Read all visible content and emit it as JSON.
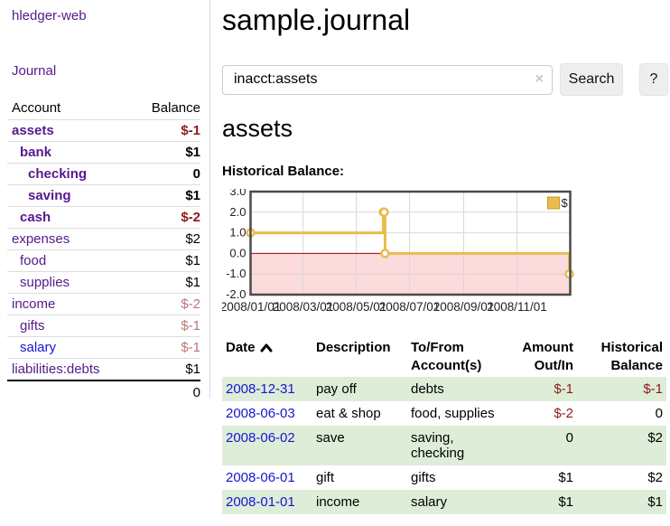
{
  "app": {
    "brand": "hledger-web",
    "nav": {
      "journal": "Journal"
    }
  },
  "colors": {
    "link_purple": "#551a8b",
    "link_blue": "#1515d2",
    "negative_strong": "#8e1919",
    "negative_muted": "#bd7575",
    "row_green": "#ddedd8",
    "chart_line_gold": "#e8bd4d",
    "chart_negative_region_pink": "#fbdbdb",
    "chart_zero_line_red": "#a00000",
    "button_gray": "#eeeeee"
  },
  "sidebar": {
    "header": {
      "account": "Account",
      "balance": "Balance"
    },
    "accounts": [
      {
        "name": "assets",
        "balance": "$-1",
        "depth": 1,
        "emph": true,
        "balance_class": "neg-strong",
        "link": "purple"
      },
      {
        "name": "bank",
        "balance": "$1",
        "depth": 2,
        "emph": true,
        "balance_class": "",
        "link": "purple"
      },
      {
        "name": "checking",
        "balance": "0",
        "depth": 3,
        "emph": true,
        "balance_class": "",
        "link": "purple"
      },
      {
        "name": "saving",
        "balance": "$1",
        "depth": 3,
        "emph": true,
        "balance_class": "",
        "link": "purple"
      },
      {
        "name": "cash",
        "balance": "$-2",
        "depth": 2,
        "emph": true,
        "balance_class": "neg-strong",
        "link": "purple"
      },
      {
        "name": "expenses",
        "balance": "$2",
        "depth": 1,
        "emph": false,
        "balance_class": "",
        "link": "purple"
      },
      {
        "name": "food",
        "balance": "$1",
        "depth": 2,
        "emph": false,
        "balance_class": "",
        "link": "purple"
      },
      {
        "name": "supplies",
        "balance": "$1",
        "depth": 2,
        "emph": false,
        "balance_class": "",
        "link": "purple"
      },
      {
        "name": "income",
        "balance": "$-2",
        "depth": 1,
        "emph": false,
        "balance_class": "neg-soft",
        "link": "purple"
      },
      {
        "name": "gifts",
        "balance": "$-1",
        "depth": 2,
        "emph": false,
        "balance_class": "neg-soft",
        "link": "purple"
      },
      {
        "name": "salary",
        "balance": "$-1",
        "depth": 2,
        "emph": false,
        "balance_class": "neg-soft",
        "link": "blue"
      },
      {
        "name": "liabilities:debts",
        "balance": "$1",
        "depth": 1,
        "emph": false,
        "balance_class": "",
        "link": "purple"
      }
    ],
    "total": "0"
  },
  "main": {
    "title": "sample.journal",
    "search": {
      "value": "inacct:assets",
      "clear_icon": "×",
      "search_button": "Search",
      "help_button": "?"
    },
    "account_heading": "assets"
  },
  "chart_data": {
    "type": "line",
    "title": "Historical Balance:",
    "style": "step-after",
    "series": [
      {
        "name": "$",
        "points": [
          {
            "date": "2008-01-01",
            "value": 1
          },
          {
            "date": "2008-06-01",
            "value": 2
          },
          {
            "date": "2008-06-02",
            "value": 2
          },
          {
            "date": "2008-06-03",
            "value": 0
          },
          {
            "date": "2008-12-31",
            "value": -1
          }
        ]
      }
    ],
    "ylim": [
      -2,
      3
    ],
    "yticks": [
      "3.0",
      "2.0",
      "1.0",
      "0.0",
      "-1.0",
      "-2.0"
    ],
    "ytick_values": [
      3,
      2,
      1,
      0,
      -1,
      -2
    ],
    "xdomain": [
      "2008-01-01",
      "2009-01-01"
    ],
    "xtick_labels": [
      "2008/01/01",
      "2008/03/01",
      "2008/05/01",
      "2008/07/01",
      "2008/09/01",
      "2008/11/01"
    ],
    "xtick_dates": [
      "2008-01-01",
      "2008-03-01",
      "2008-05-01",
      "2008-07-01",
      "2008-09-01",
      "2008-11-01"
    ],
    "grid": true,
    "legend": {
      "label": "$",
      "position": "top-right"
    },
    "negative_region_shaded": true
  },
  "register": {
    "headers": {
      "date": "Date",
      "description": "Description",
      "accounts": "To/From Account(s)",
      "amount": "Amount Out/In",
      "balance": "Historical Balance"
    },
    "sort": {
      "column": "date",
      "direction": "asc"
    },
    "rows": [
      {
        "date": "2008-12-31",
        "description": "pay off",
        "accounts": "debts",
        "amount": "$-1",
        "amount_negative": true,
        "balance": "$-1",
        "balance_negative": true
      },
      {
        "date": "2008-06-03",
        "description": "eat & shop",
        "accounts": "food, supplies",
        "amount": "$-2",
        "amount_negative": true,
        "balance": "0",
        "balance_negative": false
      },
      {
        "date": "2008-06-02",
        "description": "save",
        "accounts": "saving, checking",
        "amount": "0",
        "amount_negative": false,
        "balance": "$2",
        "balance_negative": false
      },
      {
        "date": "2008-06-01",
        "description": "gift",
        "accounts": "gifts",
        "amount": "$1",
        "amount_negative": false,
        "balance": "$2",
        "balance_negative": false
      },
      {
        "date": "2008-01-01",
        "description": "income",
        "accounts": "salary",
        "amount": "$1",
        "amount_negative": false,
        "balance": "$1",
        "balance_negative": false
      }
    ]
  }
}
